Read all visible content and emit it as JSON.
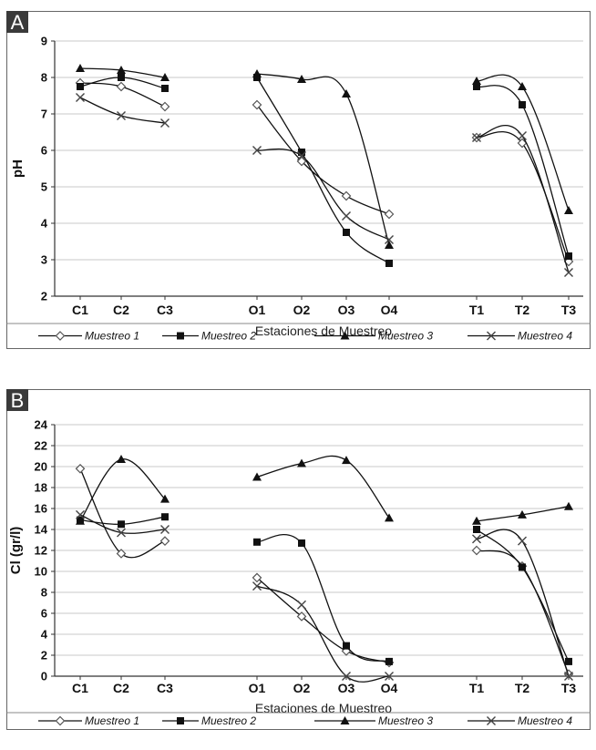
{
  "series_styles": [
    {
      "marker": "diamond-open",
      "color": "#555555"
    },
    {
      "marker": "square",
      "color": "#111111"
    },
    {
      "marker": "triangle",
      "color": "#111111"
    },
    {
      "marker": "cross",
      "color": "#444444"
    }
  ],
  "panel_badge_color": "#3a3a3a",
  "chart_data": [
    {
      "panel": "A",
      "type": "line",
      "xlabel": "Estaciones de Muestreo",
      "ylabel": "pH",
      "ylim": [
        2,
        9
      ],
      "yticks": [
        2,
        3,
        4,
        5,
        6,
        7,
        8,
        9
      ],
      "grid": true,
      "legend": "bottom",
      "categories": [
        "C1",
        "C2",
        "C3",
        "O1",
        "O2",
        "O3",
        "O4",
        "T1",
        "T2",
        "T3"
      ],
      "groups": [
        [
          0,
          1,
          2
        ],
        [
          3,
          4,
          5,
          6
        ],
        [
          7,
          8,
          9
        ]
      ],
      "series": [
        {
          "name": "Muestreo 1",
          "values": [
            7.85,
            7.75,
            7.2,
            7.25,
            5.7,
            4.75,
            4.25,
            6.35,
            6.2,
            2.95
          ]
        },
        {
          "name": "Muestreo 2",
          "values": [
            7.75,
            8.0,
            7.7,
            8.0,
            5.95,
            3.75,
            2.9,
            7.75,
            7.25,
            3.1
          ]
        },
        {
          "name": "Muestreo 3",
          "values": [
            8.25,
            8.2,
            8.0,
            8.1,
            7.95,
            7.55,
            3.4,
            7.9,
            7.75,
            4.35
          ]
        },
        {
          "name": "Muestreo 4",
          "values": [
            7.45,
            6.95,
            6.75,
            6.0,
            5.85,
            4.2,
            3.55,
            6.35,
            6.4,
            2.65
          ]
        }
      ]
    },
    {
      "panel": "B",
      "type": "line",
      "xlabel": "Estaciones de Muestreo",
      "ylabel": "Cl (gr/l)",
      "ylim": [
        0,
        24
      ],
      "yticks": [
        0,
        2,
        4,
        6,
        8,
        10,
        12,
        14,
        16,
        18,
        20,
        22,
        24
      ],
      "grid": true,
      "legend": "bottom",
      "categories": [
        "C1",
        "C2",
        "C3",
        "O1",
        "O2",
        "O3",
        "O4",
        "T1",
        "T2",
        "T3"
      ],
      "groups": [
        [
          0,
          1,
          2
        ],
        [
          3,
          4,
          5,
          6
        ],
        [
          7,
          8,
          9
        ]
      ],
      "series": [
        {
          "name": "Muestreo 1",
          "values": [
            19.8,
            11.7,
            12.9,
            9.4,
            5.7,
            2.4,
            1.3,
            12.0,
            10.5,
            0.2
          ]
        },
        {
          "name": "Muestreo 2",
          "values": [
            14.9,
            14.5,
            15.2,
            12.8,
            12.7,
            2.9,
            1.4,
            14.0,
            10.4,
            1.4
          ]
        },
        {
          "name": "Muestreo 3",
          "values": [
            14.8,
            20.7,
            16.9,
            19.0,
            20.3,
            20.6,
            15.1,
            14.8,
            15.4,
            16.2
          ]
        },
        {
          "name": "Muestreo 4",
          "values": [
            15.4,
            13.7,
            14.0,
            8.6,
            6.8,
            0.0,
            0.0,
            13.1,
            12.9,
            0.0
          ]
        }
      ]
    }
  ]
}
